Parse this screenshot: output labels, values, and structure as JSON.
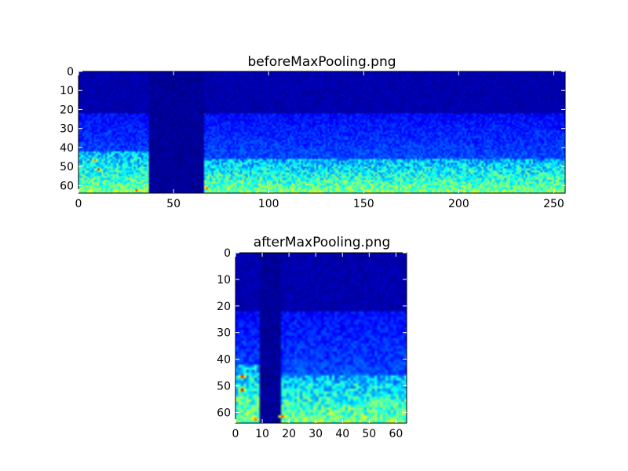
{
  "chart_data": [
    {
      "type": "heatmap",
      "title": "beforeMaxPooling.png",
      "xlabel": "",
      "ylabel": "",
      "x_range": [
        0,
        256
      ],
      "y_range": [
        0,
        64
      ],
      "y_inverted": true,
      "x_ticks": [
        0,
        50,
        100,
        150,
        200,
        250
      ],
      "y_ticks": [
        0,
        10,
        20,
        30,
        40,
        50,
        60
      ],
      "colormap": "jet",
      "grid": false,
      "features": {
        "silent_band_x": [
          37,
          65
        ],
        "quiet_rows_below": 22,
        "left_block_rows_from": 42,
        "right_block_rows_from": 46,
        "hot_spots": [
          [
            10,
            51
          ],
          [
            30,
            62
          ],
          [
            67,
            61
          ],
          [
            8,
            46
          ]
        ]
      }
    },
    {
      "type": "heatmap",
      "title": "afterMaxPooling.png",
      "xlabel": "",
      "ylabel": "",
      "x_range": [
        0,
        64
      ],
      "y_range": [
        0,
        64
      ],
      "y_inverted": true,
      "x_ticks": [
        0,
        10,
        20,
        30,
        40,
        50,
        60
      ],
      "y_ticks": [
        0,
        10,
        20,
        30,
        40,
        50,
        60
      ],
      "colormap": "jet",
      "grid": false,
      "features": {
        "silent_band_x": [
          9,
          16
        ],
        "quiet_rows_below": 22,
        "left_block_rows_from": 42,
        "right_block_rows_from": 46,
        "hot_spots": [
          [
            2,
            51
          ],
          [
            2,
            46
          ],
          [
            17,
            61
          ],
          [
            7,
            62
          ]
        ]
      }
    }
  ]
}
